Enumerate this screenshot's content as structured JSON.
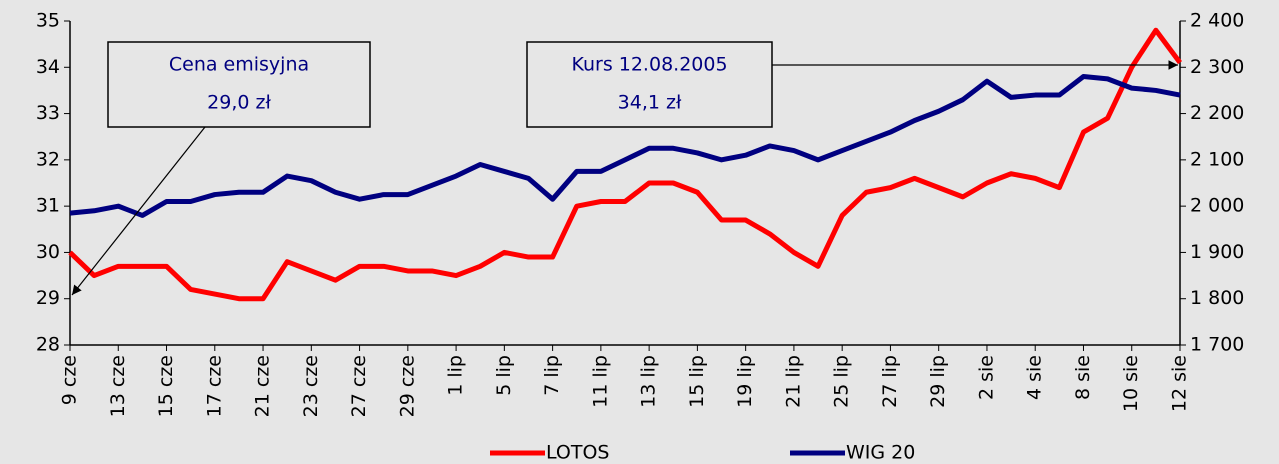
{
  "chart_data": {
    "type": "line",
    "categories": [
      "9 cze",
      null,
      "13 cze",
      null,
      "15 cze",
      null,
      "17 cze",
      null,
      "21 cze",
      null,
      "23 cze",
      null,
      "27 cze",
      null,
      "29 cze",
      null,
      "1 lip",
      null,
      "5 lip",
      null,
      "7 lip",
      null,
      "11 lip",
      null,
      "13 lip",
      null,
      "15 lip",
      null,
      "19 lip",
      null,
      "21 lip",
      null,
      "25 lip",
      null,
      "27 lip",
      null,
      "29 lip",
      null,
      "2 sie",
      null,
      "4 sie",
      null,
      "8 sie",
      null,
      "10 sie",
      null,
      "12 sie"
    ],
    "series": [
      {
        "name": "LOTOS",
        "color": "#ff0000",
        "values": [
          30.0,
          29.5,
          29.7,
          29.7,
          29.7,
          29.2,
          29.1,
          29.0,
          29.0,
          29.8,
          29.6,
          29.4,
          29.7,
          29.7,
          29.6,
          29.6,
          29.5,
          29.7,
          30.0,
          29.9,
          29.9,
          31.0,
          31.1,
          31.1,
          31.5,
          31.5,
          31.3,
          30.7,
          30.7,
          30.4,
          30.0,
          29.7,
          30.8,
          31.3,
          31.4,
          31.6,
          31.4,
          31.2,
          31.5,
          31.7,
          31.6,
          31.4,
          32.6,
          32.9,
          34.0,
          34.8,
          34.1
        ]
      },
      {
        "name": "WIG 20",
        "color": "#000080",
        "axis": "y2",
        "values": [
          1985,
          1990,
          2000,
          1980,
          2010,
          2010,
          2025,
          2030,
          2030,
          2065,
          2055,
          2030,
          2015,
          2025,
          2025,
          2045,
          2065,
          2090,
          2075,
          2060,
          2015,
          2075,
          2075,
          2100,
          2125,
          2125,
          2115,
          2100,
          2110,
          2130,
          2120,
          2100,
          2120,
          2140,
          2160,
          2185,
          2205,
          2230,
          2270,
          2235,
          2240,
          2240,
          2280,
          2275,
          2255,
          2250,
          2240
        ]
      }
    ],
    "ylim": [
      28,
      35
    ],
    "yticks": [
      28,
      29,
      30,
      31,
      32,
      33,
      34,
      35
    ],
    "y2lim": [
      1700,
      2400
    ],
    "y2ticks": [
      {
        "value": 1700,
        "label": "1 700"
      },
      {
        "value": 1800,
        "label": "1 800"
      },
      {
        "value": 1900,
        "label": "1 900"
      },
      {
        "value": 2000,
        "label": "2 000"
      },
      {
        "value": 2100,
        "label": "2 100"
      },
      {
        "value": 2200,
        "label": "2 200"
      },
      {
        "value": 2300,
        "label": "2 300"
      },
      {
        "value": 2400,
        "label": "2 400"
      }
    ],
    "annotations": [
      {
        "lines": [
          "Cena emisyjna",
          "29,0 zł"
        ]
      },
      {
        "lines": [
          "Kurs 12.08.2005",
          "34,1 zł"
        ]
      }
    ],
    "legend": "bottom"
  }
}
